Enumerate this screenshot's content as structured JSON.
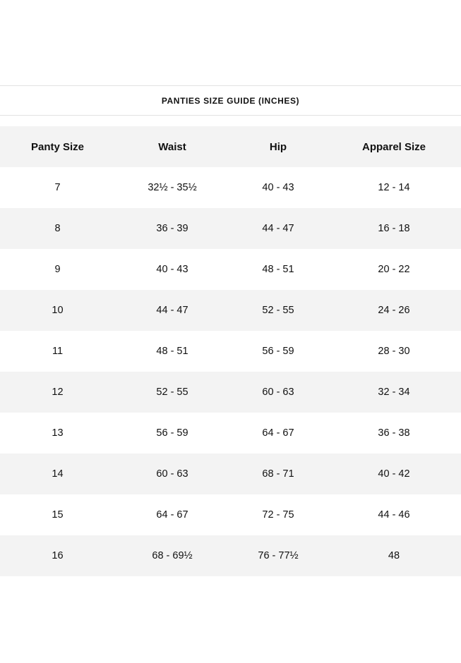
{
  "title": "PANTIES SIZE GUIDE (INCHES)",
  "headers": [
    "Panty Size",
    "Waist",
    "Hip",
    "Apparel Size"
  ],
  "rows": [
    [
      "7",
      "32½ - 35½",
      "40 - 43",
      "12 - 14"
    ],
    [
      "8",
      "36 - 39",
      "44 - 47",
      "16 - 18"
    ],
    [
      "9",
      "40 - 43",
      "48 - 51",
      "20 - 22"
    ],
    [
      "10",
      "44 - 47",
      "52 - 55",
      "24 - 26"
    ],
    [
      "11",
      "48 - 51",
      "56 - 59",
      "28 - 30"
    ],
    [
      "12",
      "52 - 55",
      "60 - 63",
      "32 - 34"
    ],
    [
      "13",
      "56 - 59",
      "64 - 67",
      "36 - 38"
    ],
    [
      "14",
      "60 - 63",
      "68 - 71",
      "40 - 42"
    ],
    [
      "15",
      "64 - 67",
      "72 - 75",
      "44 - 46"
    ],
    [
      "16",
      "68 - 69½",
      "76 - 77½",
      "48"
    ]
  ]
}
